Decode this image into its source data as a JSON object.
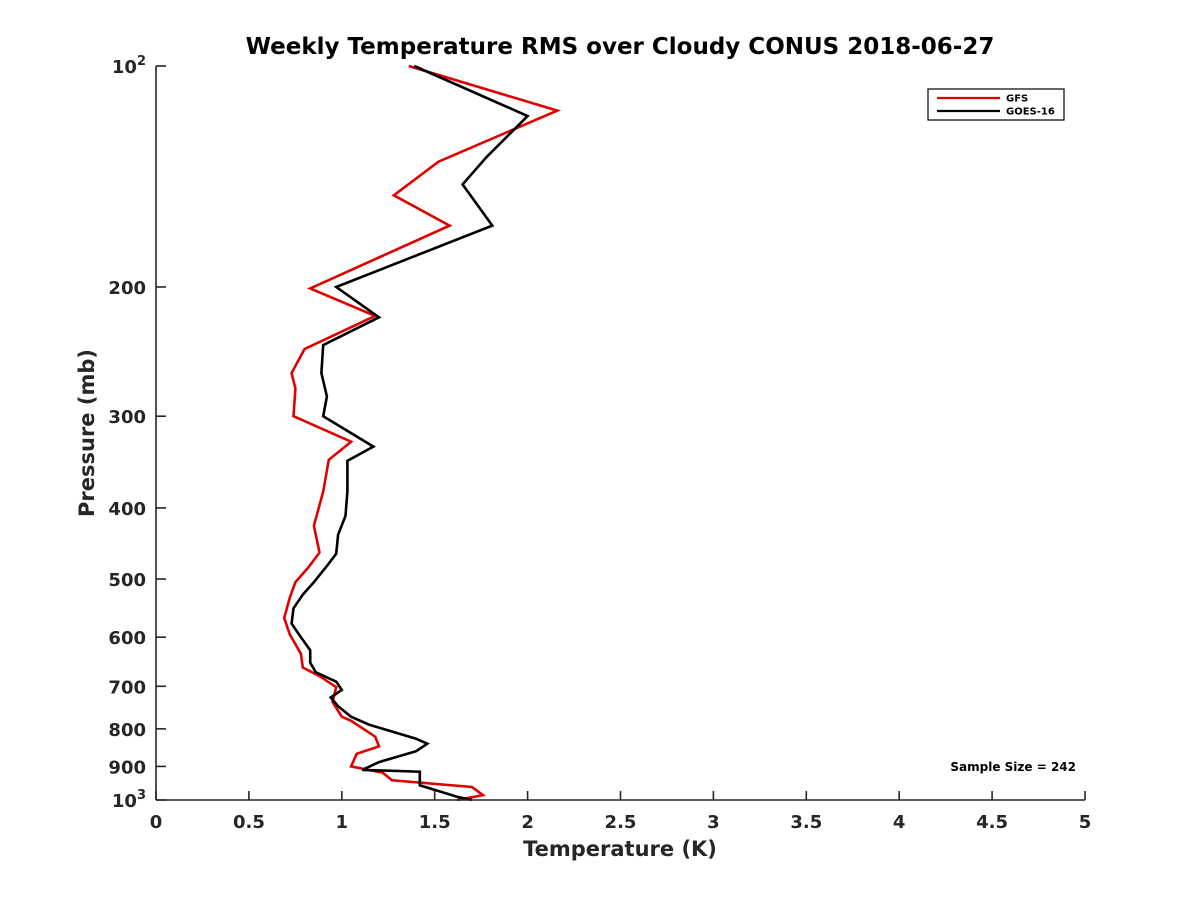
{
  "chart_data": {
    "type": "line",
    "title": "Weekly Temperature RMS over Cloudy CONUS 2018-06-27",
    "xlabel": "Temperature (K)",
    "ylabel": "Pressure (mb)",
    "xlim": [
      0,
      5
    ],
    "ylim": [
      100,
      1000
    ],
    "y_scale": "log",
    "y_reversed": true,
    "x_ticks": [
      "0",
      "0.5",
      "1",
      "1.5",
      "2",
      "2.5",
      "3",
      "3.5",
      "4",
      "4.5",
      "5"
    ],
    "y_ticks": [
      {
        "value": 100,
        "base": "10",
        "exp": "2"
      },
      {
        "value": 200,
        "label": "200"
      },
      {
        "value": 300,
        "label": "300"
      },
      {
        "value": 400,
        "label": "400"
      },
      {
        "value": 500,
        "label": "500"
      },
      {
        "value": 600,
        "label": "600"
      },
      {
        "value": 700,
        "label": "700"
      },
      {
        "value": 800,
        "label": "800"
      },
      {
        "value": 900,
        "label": "900"
      },
      {
        "value": 1000,
        "base": "10",
        "exp": "3"
      }
    ],
    "grid": false,
    "legend_position": "top-right",
    "annotation": "Sample Size = 242",
    "series": [
      {
        "name": "GFS",
        "color": "#e00000",
        "points": [
          [
            1.36,
            100
          ],
          [
            2.16,
            115
          ],
          [
            1.52,
            135
          ],
          [
            1.28,
            150
          ],
          [
            1.58,
            165
          ],
          [
            0.83,
            201
          ],
          [
            1.18,
            219
          ],
          [
            0.8,
            243
          ],
          [
            0.73,
            262
          ],
          [
            0.75,
            275
          ],
          [
            0.74,
            300
          ],
          [
            1.05,
            325
          ],
          [
            0.93,
            344
          ],
          [
            0.9,
            380
          ],
          [
            0.85,
            423
          ],
          [
            0.88,
            460
          ],
          [
            0.82,
            482
          ],
          [
            0.75,
            505
          ],
          [
            0.72,
            530
          ],
          [
            0.69,
            565
          ],
          [
            0.72,
            595
          ],
          [
            0.78,
            632
          ],
          [
            0.79,
            660
          ],
          [
            0.88,
            678
          ],
          [
            0.97,
            702
          ],
          [
            0.95,
            735
          ],
          [
            1.0,
            770
          ],
          [
            1.05,
            780
          ],
          [
            1.18,
            820
          ],
          [
            1.2,
            845
          ],
          [
            1.08,
            865
          ],
          [
            1.05,
            900
          ],
          [
            1.22,
            918
          ],
          [
            1.27,
            940
          ],
          [
            1.7,
            960
          ],
          [
            1.76,
            985
          ],
          [
            1.62,
            1000
          ]
        ]
      },
      {
        "name": "GOES-16",
        "color": "#000000",
        "points": [
          [
            1.39,
            100
          ],
          [
            2.0,
            117
          ],
          [
            1.78,
            133
          ],
          [
            1.65,
            145
          ],
          [
            1.81,
            165
          ],
          [
            0.97,
            200
          ],
          [
            1.2,
            220
          ],
          [
            0.9,
            240
          ],
          [
            0.89,
            262
          ],
          [
            0.92,
            282
          ],
          [
            0.9,
            300
          ],
          [
            1.17,
            330
          ],
          [
            1.03,
            345
          ],
          [
            1.03,
            380
          ],
          [
            1.02,
            410
          ],
          [
            0.98,
            435
          ],
          [
            0.97,
            462
          ],
          [
            0.92,
            480
          ],
          [
            0.85,
            505
          ],
          [
            0.79,
            525
          ],
          [
            0.74,
            548
          ],
          [
            0.73,
            575
          ],
          [
            0.78,
            600
          ],
          [
            0.83,
            625
          ],
          [
            0.83,
            650
          ],
          [
            0.86,
            670
          ],
          [
            0.97,
            690
          ],
          [
            1.0,
            708
          ],
          [
            0.94,
            725
          ],
          [
            0.98,
            745
          ],
          [
            1.05,
            770
          ],
          [
            1.15,
            790
          ],
          [
            1.4,
            825
          ],
          [
            1.46,
            838
          ],
          [
            1.4,
            858
          ],
          [
            1.2,
            888
          ],
          [
            1.11,
            910
          ],
          [
            1.42,
            915
          ],
          [
            1.42,
            955
          ],
          [
            1.62,
            990
          ],
          [
            1.7,
            1000
          ]
        ]
      }
    ]
  }
}
